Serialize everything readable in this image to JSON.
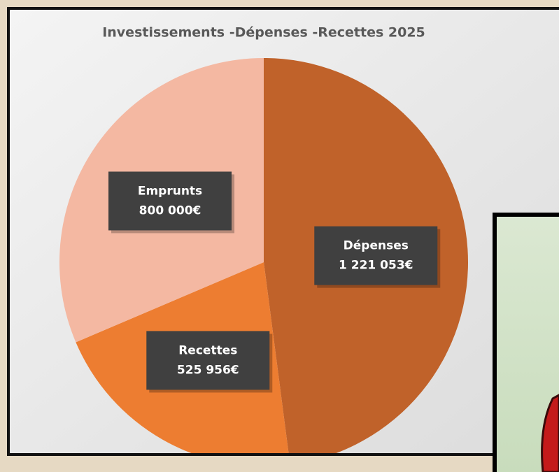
{
  "chart_data": {
    "type": "pie",
    "title": "Investissements -Dépenses -Recettes 2025",
    "categories": [
      "Dépenses",
      "Recettes",
      "Emprunts"
    ],
    "values": [
      1221053,
      525956,
      800000
    ],
    "value_labels": [
      "1 221 053€",
      "525 956€",
      "800 000€"
    ],
    "colors": [
      "#c0622a",
      "#ed7d31",
      "#f4b8a2"
    ]
  }
}
